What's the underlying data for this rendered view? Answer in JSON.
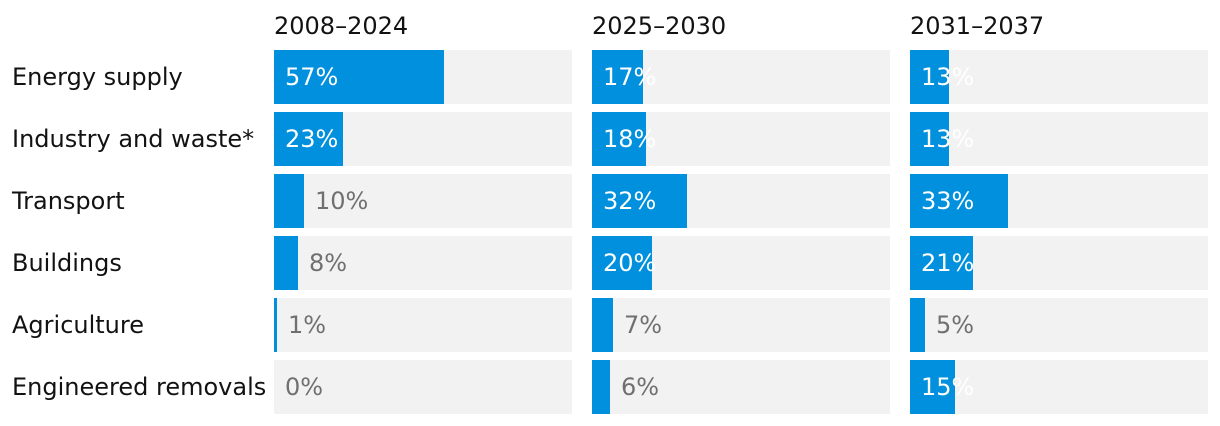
{
  "colors": {
    "bar": "#0090dd",
    "track": "#f2f2f2",
    "label_text": "#121212",
    "value_inside": "#ffffff",
    "value_outside": "#707070"
  },
  "chart_data": {
    "type": "bar",
    "orientation": "horizontal",
    "layout": "small-multiples",
    "title": "",
    "xlabel": "",
    "ylabel": "",
    "xlim": [
      0,
      100
    ],
    "categories": [
      "Energy supply",
      "Industry and waste*",
      "Transport",
      "Buildings",
      "Agriculture",
      "Engineered removals"
    ],
    "series": [
      {
        "name": "2008–2024",
        "values": [
          57,
          23,
          10,
          8,
          1,
          0
        ]
      },
      {
        "name": "2025–2030",
        "values": [
          17,
          18,
          32,
          20,
          7,
          6
        ]
      },
      {
        "name": "2031–2037",
        "values": [
          13,
          13,
          33,
          21,
          5,
          15
        ]
      }
    ],
    "value_suffix": "%",
    "grid": false,
    "legend": "none"
  }
}
